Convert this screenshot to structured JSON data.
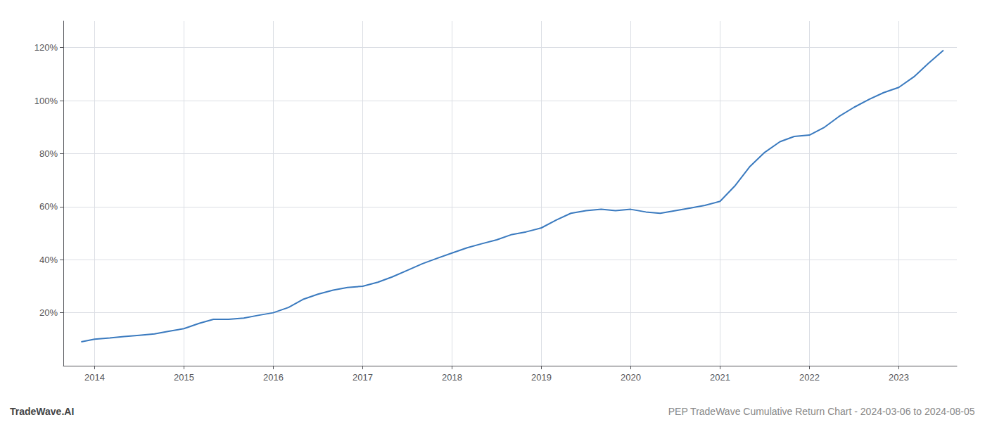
{
  "chart_data": {
    "type": "line",
    "annotations": [
      "TradeWave.AI",
      "PEP TradeWave Cumulative Return Chart - 2024-03-06 to 2024-08-05"
    ],
    "x": [
      2013.85,
      2014.0,
      2014.17,
      2014.33,
      2014.5,
      2014.67,
      2014.83,
      2015.0,
      2015.17,
      2015.33,
      2015.5,
      2015.67,
      2015.83,
      2016.0,
      2016.17,
      2016.33,
      2016.5,
      2016.67,
      2016.83,
      2017.0,
      2017.17,
      2017.33,
      2017.5,
      2017.67,
      2017.83,
      2018.0,
      2018.17,
      2018.33,
      2018.5,
      2018.67,
      2018.83,
      2019.0,
      2019.17,
      2019.33,
      2019.5,
      2019.67,
      2019.83,
      2020.0,
      2020.17,
      2020.33,
      2020.5,
      2020.67,
      2020.83,
      2021.0,
      2021.17,
      2021.33,
      2021.5,
      2021.67,
      2021.83,
      2022.0,
      2022.17,
      2022.33,
      2022.5,
      2022.67,
      2022.83,
      2023.0,
      2023.17,
      2023.33,
      2023.5
    ],
    "values": [
      9.0,
      10.0,
      10.5,
      11.0,
      11.5,
      12.0,
      13.0,
      14.0,
      16.0,
      17.5,
      17.5,
      18.0,
      19.0,
      20.0,
      22.0,
      25.0,
      27.0,
      28.5,
      29.5,
      30.0,
      31.5,
      33.5,
      36.0,
      38.5,
      40.5,
      42.5,
      44.5,
      46.0,
      47.5,
      49.5,
      50.5,
      52.0,
      55.0,
      57.5,
      58.5,
      59.0,
      58.5,
      59.0,
      58.0,
      57.5,
      58.5,
      59.5,
      60.5,
      62.0,
      68.0,
      75.0,
      80.5,
      84.5,
      86.5,
      87.0,
      90.0,
      94.0,
      97.5,
      100.5,
      103.0,
      105.0,
      109.0,
      114.0,
      119.0
    ],
    "color": "#3a7abf",
    "xlim": [
      2013.65,
      2023.65
    ],
    "ylim": [
      0,
      130
    ],
    "xticks": [
      2014,
      2015,
      2016,
      2017,
      2018,
      2019,
      2020,
      2021,
      2022,
      2023
    ],
    "yticks": [
      {
        "value": 20,
        "label": "20%"
      },
      {
        "value": 40,
        "label": "40%"
      },
      {
        "value": 60,
        "label": "60%"
      },
      {
        "value": 80,
        "label": "80%"
      },
      {
        "value": 100,
        "label": "100%"
      },
      {
        "value": 120,
        "label": "120%"
      }
    ],
    "grid": true
  }
}
